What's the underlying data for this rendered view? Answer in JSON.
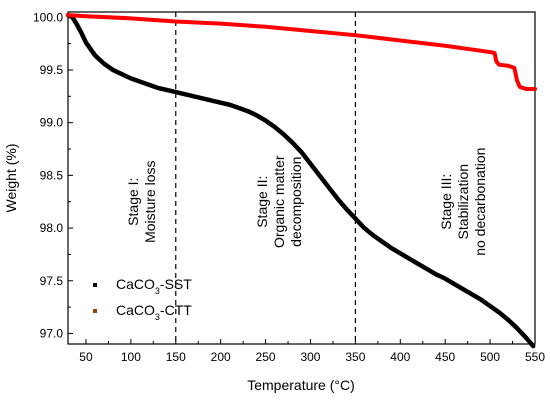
{
  "chart_data": {
    "type": "line",
    "xlabel": "Temperature (°C)",
    "ylabel": "Weight (%)",
    "xlim": [
      30,
      550
    ],
    "ylim": [
      96.9,
      100.05
    ],
    "x_ticks": [
      50,
      100,
      150,
      200,
      250,
      300,
      350,
      400,
      450,
      500,
      550
    ],
    "y_ticks": [
      97.0,
      97.5,
      98.0,
      98.5,
      99.0,
      99.5,
      100.0
    ],
    "grid": false,
    "legend_position": "bottom-left",
    "vlines": [
      150,
      350
    ],
    "annotations": [
      {
        "lines": [
          "Stage I:",
          "Moisture loss"
        ],
        "x": 112,
        "y": 98.25
      },
      {
        "lines": [
          "Stage II:",
          "Organic matter",
          "decomposition"
        ],
        "x": 265,
        "y": 98.25
      },
      {
        "lines": [
          "Stage III:",
          "Stabilization",
          "no decarbonation"
        ],
        "x": 470,
        "y": 98.25
      }
    ],
    "series": [
      {
        "name": "CaCO3-SST",
        "legend_main": "CaCO",
        "legend_sub": "3",
        "legend_tail": "-SST",
        "color": "#000000",
        "x": [
          30,
          35,
          40,
          45,
          50,
          60,
          70,
          80,
          90,
          100,
          110,
          120,
          130,
          140,
          150,
          160,
          170,
          180,
          190,
          200,
          210,
          220,
          230,
          240,
          250,
          260,
          270,
          280,
          290,
          300,
          310,
          320,
          330,
          340,
          350,
          360,
          370,
          380,
          390,
          400,
          410,
          420,
          430,
          440,
          450,
          460,
          470,
          480,
          490,
          500,
          510,
          520,
          530,
          540,
          545,
          548
        ],
        "values": [
          100.02,
          100.0,
          99.93,
          99.85,
          99.76,
          99.64,
          99.56,
          99.5,
          99.46,
          99.42,
          99.39,
          99.36,
          99.33,
          99.31,
          99.29,
          99.27,
          99.25,
          99.23,
          99.21,
          99.19,
          99.17,
          99.14,
          99.11,
          99.07,
          99.02,
          98.96,
          98.89,
          98.81,
          98.72,
          98.61,
          98.5,
          98.39,
          98.28,
          98.18,
          98.09,
          98.0,
          97.93,
          97.87,
          97.81,
          97.76,
          97.71,
          97.66,
          97.61,
          97.56,
          97.52,
          97.47,
          97.42,
          97.37,
          97.32,
          97.26,
          97.2,
          97.13,
          97.05,
          96.96,
          96.91,
          96.88
        ]
      },
      {
        "name": "CaCO3-CTT",
        "legend_main": "CaCO",
        "legend_sub": "3",
        "legend_tail": "-CTT",
        "color": "#ff0000",
        "x": [
          30,
          50,
          100,
          150,
          200,
          250,
          300,
          350,
          400,
          450,
          500,
          505,
          507,
          510,
          520,
          527,
          530,
          533,
          540,
          550
        ],
        "values": [
          100.02,
          100.01,
          99.99,
          99.96,
          99.94,
          99.91,
          99.87,
          99.83,
          99.78,
          99.73,
          99.67,
          99.66,
          99.58,
          99.55,
          99.54,
          99.52,
          99.4,
          99.34,
          99.32,
          99.32
        ]
      }
    ]
  }
}
